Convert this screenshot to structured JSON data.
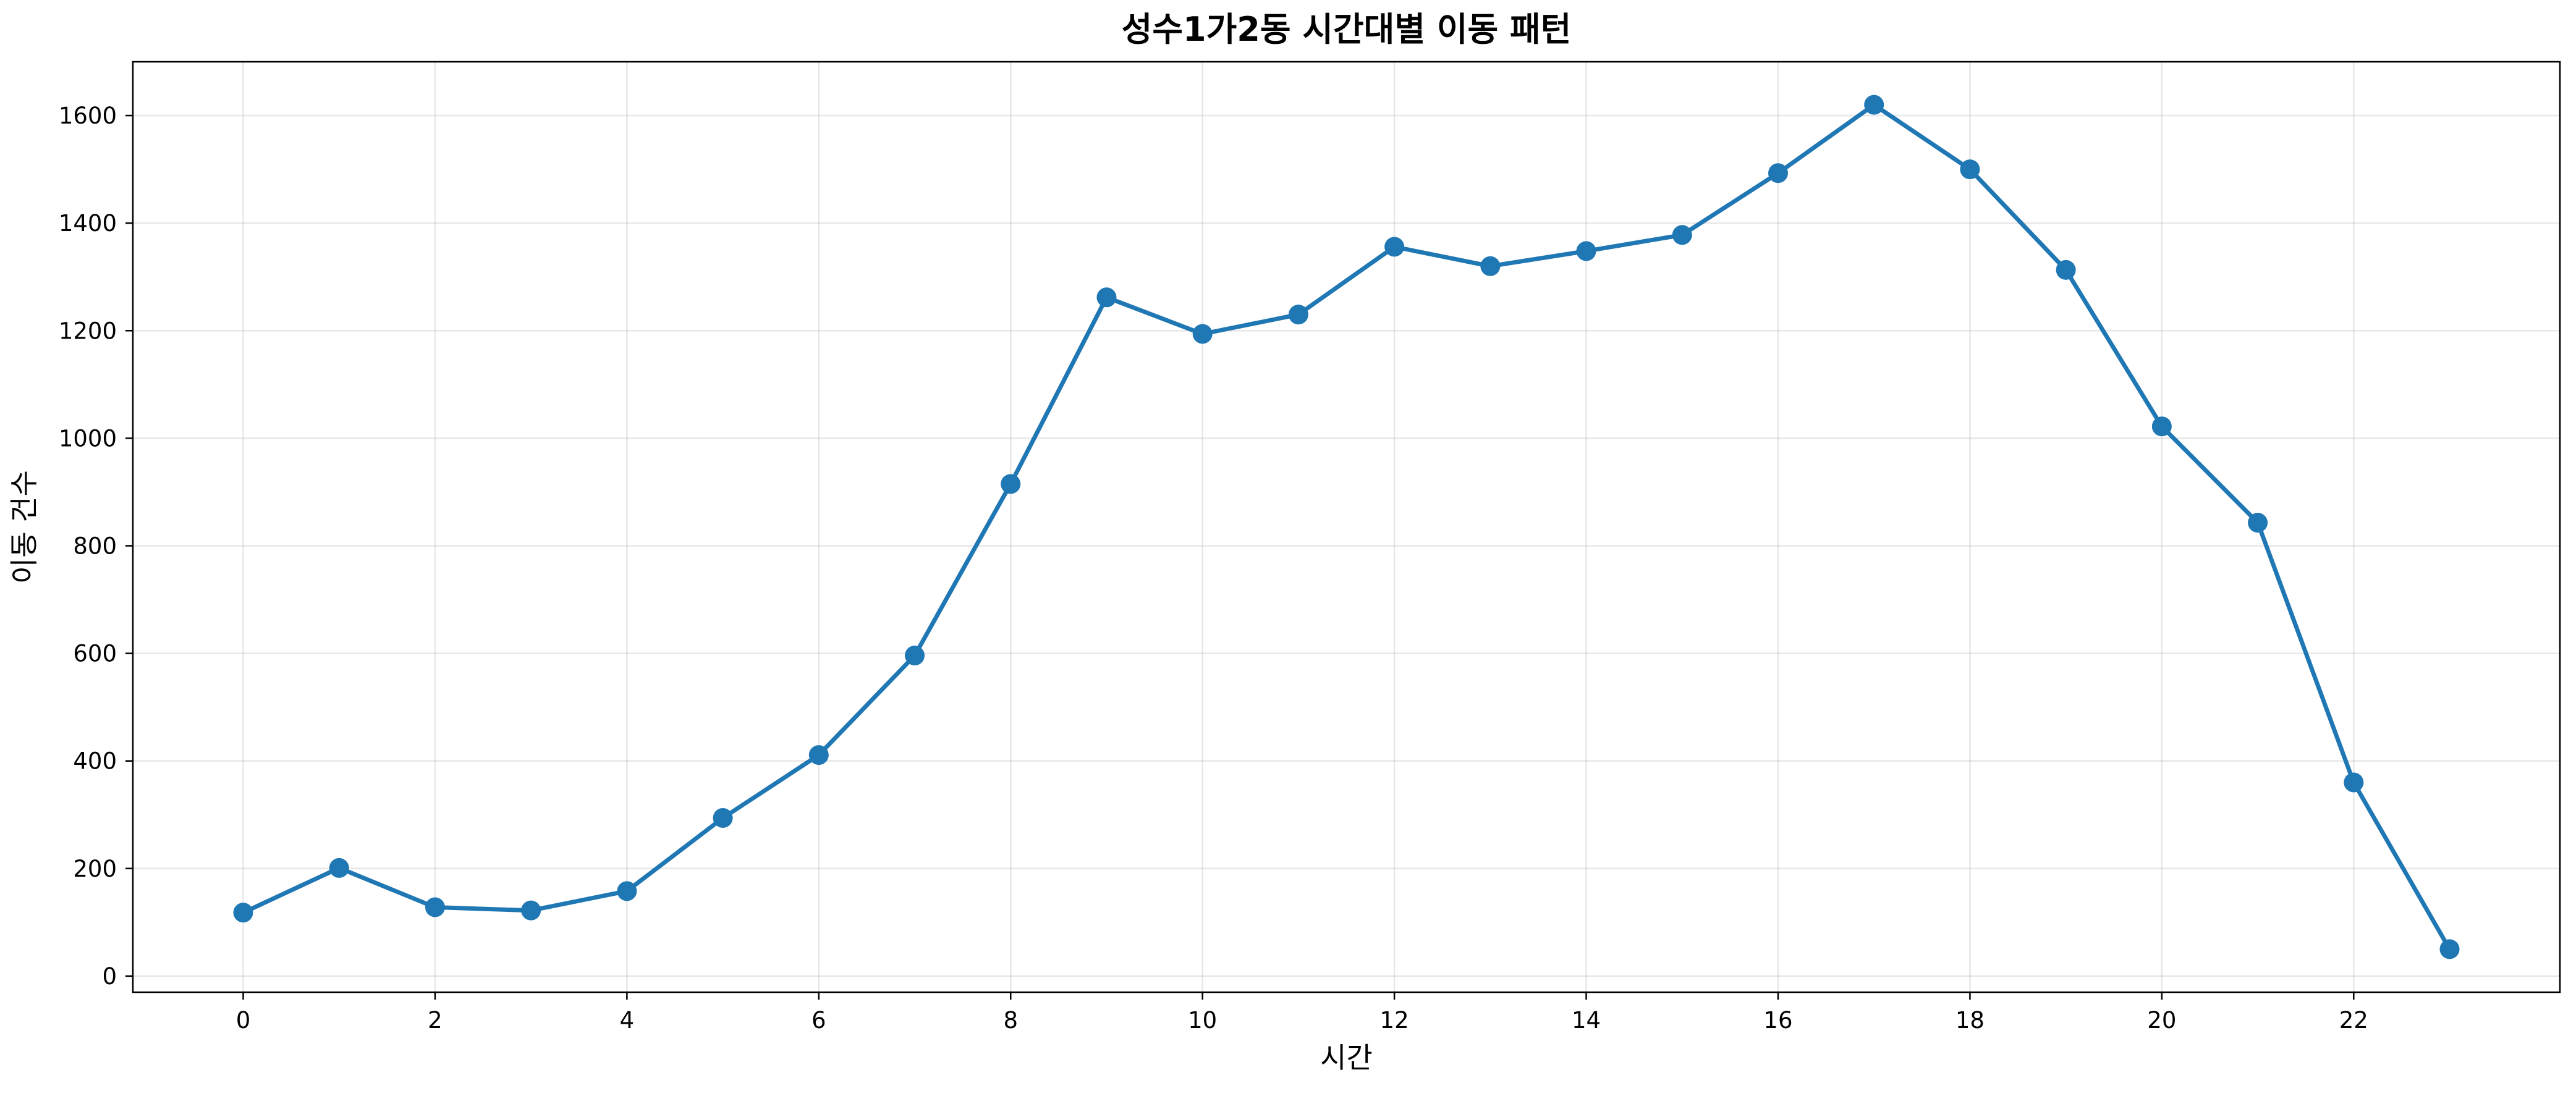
{
  "chart_data": {
    "type": "line",
    "title": "성수1가2동 시간대별 이동 패턴",
    "xlabel": "시간",
    "ylabel": "이동 건수",
    "x": [
      0,
      1,
      2,
      3,
      4,
      5,
      6,
      7,
      8,
      9,
      10,
      11,
      12,
      13,
      14,
      15,
      16,
      17,
      18,
      19,
      20,
      21,
      22,
      23
    ],
    "xticks": [
      "0",
      "2",
      "4",
      "6",
      "8",
      "10",
      "12",
      "14",
      "16",
      "18",
      "20",
      "22"
    ],
    "yticks": [
      "0",
      "200",
      "400",
      "600",
      "800",
      "1000",
      "1200",
      "1400",
      "1600"
    ],
    "xlim": [
      -1.15,
      24.15
    ],
    "ylim": [
      -30,
      1700
    ],
    "grid": true,
    "series": [
      {
        "color": "#1f77b4",
        "marker": "circle",
        "values": [
          118,
          201,
          128,
          122,
          158,
          294,
          411,
          596,
          915,
          1262,
          1194,
          1230,
          1356,
          1320,
          1348,
          1378,
          1493,
          1620,
          1500,
          1313,
          1022,
          843,
          360,
          50
        ]
      }
    ]
  }
}
